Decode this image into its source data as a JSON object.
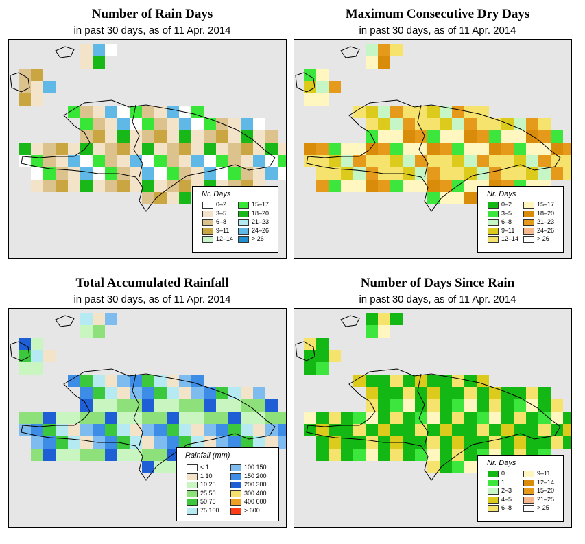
{
  "panels": [
    {
      "id": "rain-days",
      "title": "Number of Rain Days",
      "subtitle": "in past 30 days, as of  11 Apr. 2014",
      "legend": {
        "title": "Nr. Days",
        "items": [
          {
            "label": "0–2",
            "color": "#ffffff"
          },
          {
            "label": "3–5",
            "color": "#f3e4c9"
          },
          {
            "label": "6–8",
            "color": "#dcc38e"
          },
          {
            "label": "9–11",
            "color": "#c9a641"
          },
          {
            "label": "12–14",
            "color": "#c9f5c9"
          },
          {
            "label": "15–17",
            "color": "#37e637"
          },
          {
            "label": "18–20",
            "color": "#17b817"
          },
          {
            "label": "21–23",
            "color": "#b5eaf2"
          },
          {
            "label": "24–26",
            "color": "#5fb8e6"
          },
          {
            "label": "> 26",
            "color": "#1f8fd0"
          }
        ]
      }
    },
    {
      "id": "dry-days",
      "title": "Maximum Consecutive Dry Days",
      "subtitle": "in past 30 days, as of  11 Apr. 2014",
      "legend": {
        "title": "Nr. Days",
        "items": [
          {
            "label": "0–2",
            "color": "#14b814"
          },
          {
            "label": "3–5",
            "color": "#3ce63c"
          },
          {
            "label": "6–8",
            "color": "#c6f5c6"
          },
          {
            "label": "9–11",
            "color": "#dccb1c"
          },
          {
            "label": "12–14",
            "color": "#f6e36e"
          },
          {
            "label": "15–17",
            "color": "#fff7bf"
          },
          {
            "label": "18–20",
            "color": "#d98c0a"
          },
          {
            "label": "21–23",
            "color": "#e69a1c"
          },
          {
            "label": "24–26",
            "color": "#f6b98e"
          },
          {
            "label": "> 26",
            "color": "#ffffff"
          }
        ]
      }
    },
    {
      "id": "rainfall",
      "title": "Total Accumulated Rainfall",
      "subtitle": "in past 30 days, as of  11 Apr. 2014",
      "legend": {
        "title": "Rainfall (mm)",
        "items": [
          {
            "label": "<  1",
            "color": "#ffffff"
          },
          {
            "label": "1   10",
            "color": "#f3e4c9"
          },
          {
            "label": "10   25",
            "color": "#c8f5c0"
          },
          {
            "label": "25   50",
            "color": "#8ee07a"
          },
          {
            "label": "50   75",
            "color": "#3cc83c"
          },
          {
            "label": "75   100",
            "color": "#b5eaf2"
          },
          {
            "label": "100   150",
            "color": "#7ebcf0"
          },
          {
            "label": "150   200",
            "color": "#3d8de6"
          },
          {
            "label": "200   300",
            "color": "#1f5fd6"
          },
          {
            "label": "300   400",
            "color": "#f6e36e"
          },
          {
            "label": "400   600",
            "color": "#f0a020"
          },
          {
            "label": "> 600",
            "color": "#ff3c14"
          }
        ]
      }
    },
    {
      "id": "since-rain",
      "title": "Number of Days Since Rain",
      "subtitle": "in past 30 days, as of  11 Apr. 2014",
      "legend": {
        "title": "Nr. Days",
        "items": [
          {
            "label": "0",
            "color": "#14b814"
          },
          {
            "label": "1",
            "color": "#3ce63c"
          },
          {
            "label": "2–3",
            "color": "#c6f5c6"
          },
          {
            "label": "4–5",
            "color": "#dccb1c"
          },
          {
            "label": "6–8",
            "color": "#f6e36e"
          },
          {
            "label": "9–11",
            "color": "#fff7bf"
          },
          {
            "label": "12–14",
            "color": "#d98c0a"
          },
          {
            "label": "15–20",
            "color": "#e69a1c"
          },
          {
            "label": "21–25",
            "color": "#f6b98e"
          },
          {
            "label": "> 25",
            "color": "#ffffff"
          }
        ]
      }
    }
  ]
}
